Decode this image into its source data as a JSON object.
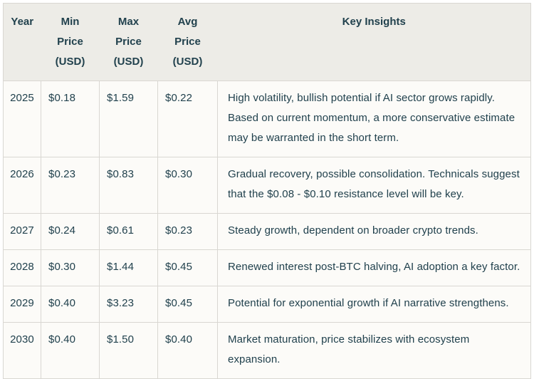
{
  "table": {
    "columns": [
      {
        "key": "year",
        "label": "Year"
      },
      {
        "key": "min",
        "label": "Min Price (USD)"
      },
      {
        "key": "max",
        "label": "Max Price (USD)"
      },
      {
        "key": "avg",
        "label": "Avg Price (USD)"
      },
      {
        "key": "insights",
        "label": "Key Insights"
      }
    ],
    "rows": [
      {
        "year": "2025",
        "min": "$0.18",
        "max": "$1.59",
        "avg": "$0.22",
        "insights": "High volatility, bullish potential if AI sector grows rapidly. Based on current momentum, a more conservative estimate may be warranted in the short term.",
        "lines": 3
      },
      {
        "year": "2026",
        "min": "$0.23",
        "max": "$0.83",
        "avg": "$0.30",
        "insights": "Gradual recovery, possible consolidation. Technicals suggest that the $0.08 - $0.10 resistance level will be key.",
        "lines": 2
      },
      {
        "year": "2027",
        "min": "$0.24",
        "max": "$0.61",
        "avg": "$0.23",
        "insights": "Steady growth, dependent on broader crypto trends.",
        "lines": 1
      },
      {
        "year": "2028",
        "min": "$0.30",
        "max": "$1.44",
        "avg": "$0.45",
        "insights": "Renewed interest post-BTC halving, AI adoption a key factor.",
        "lines": 1
      },
      {
        "year": "2029",
        "min": "$0.40",
        "max": "$3.23",
        "avg": "$0.45",
        "insights": "Potential for exponential growth if AI narrative strengthens.",
        "lines": 1
      },
      {
        "year": "2030",
        "min": "$0.40",
        "max": "$1.50",
        "avg": "$0.40",
        "insights": "Market maturation, price stabilizes with ecosystem expansion.",
        "lines": 1
      }
    ]
  },
  "colors": {
    "header_bg": "#edece7",
    "body_bg": "#fcfbf8",
    "border": "#d9d7d2",
    "text": "#21414d",
    "page_bg": "#ffffff"
  },
  "chart_data": {
    "type": "table",
    "title": "",
    "columns": [
      "Year",
      "Min Price (USD)",
      "Max Price (USD)",
      "Avg Price (USD)",
      "Key Insights"
    ],
    "rows": [
      [
        "2025",
        "$0.18",
        "$1.59",
        "$0.22",
        "High volatility, bullish potential if AI sector grows rapidly. Based on current momentum, a more conservative estimate may be warranted in the short term."
      ],
      [
        "2026",
        "$0.23",
        "$0.83",
        "$0.30",
        "Gradual recovery, possible consolidation. Technicals suggest that the $0.08 - $0.10 resistance level will be key."
      ],
      [
        "2027",
        "$0.24",
        "$0.61",
        "$0.23",
        "Steady growth, dependent on broader crypto trends."
      ],
      [
        "2028",
        "$0.30",
        "$1.44",
        "$0.45",
        "Renewed interest post-BTC halving, AI adoption a key factor."
      ],
      [
        "2029",
        "$0.40",
        "$3.23",
        "$0.45",
        "Potential for exponential growth if AI narrative strengthens."
      ],
      [
        "2030",
        "$0.40",
        "$1.50",
        "$0.40",
        "Market maturation, price stabilizes with ecosystem expansion."
      ]
    ]
  }
}
